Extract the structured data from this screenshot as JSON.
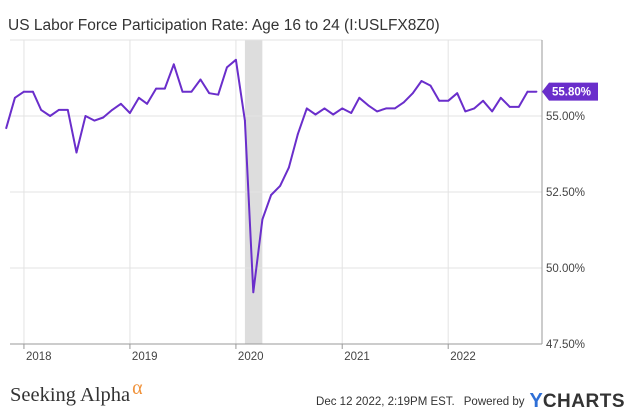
{
  "chart_data": {
    "type": "line",
    "title": "US Labor Force Participation Rate: Age 16 to 24 (I:USLFX8Z0)",
    "xlabel": "",
    "ylabel": "",
    "xlim": [
      "2017-12",
      "2022-11"
    ],
    "ylim": [
      47.5,
      57.5
    ],
    "grid": true,
    "x_tick_labels": [
      "2018",
      "2019",
      "2020",
      "2021",
      "2022"
    ],
    "y_tick_labels": [
      "47.50%",
      "50.00%",
      "52.50%",
      "55.00%"
    ],
    "y_ticks": [
      47.5,
      50.0,
      52.5,
      55.0
    ],
    "last_value_label": "55.80%",
    "line_color": "#6a2ecb",
    "recession_shading": {
      "start": "2020-02",
      "end": "2020-04",
      "color": "#dddddd"
    },
    "series": [
      {
        "x": [
          "2017-11",
          "2017-12",
          "2018-01",
          "2018-02",
          "2018-03",
          "2018-04",
          "2018-05",
          "2018-06",
          "2018-07",
          "2018-08",
          "2018-09",
          "2018-10",
          "2018-11",
          "2018-12",
          "2019-01",
          "2019-02",
          "2019-03",
          "2019-04",
          "2019-05",
          "2019-06",
          "2019-07",
          "2019-08",
          "2019-09",
          "2019-10",
          "2019-11",
          "2019-12",
          "2020-01",
          "2020-02",
          "2020-03",
          "2020-04",
          "2020-05",
          "2020-06",
          "2020-07",
          "2020-08",
          "2020-09",
          "2020-10",
          "2020-11",
          "2020-12",
          "2021-01",
          "2021-02",
          "2021-03",
          "2021-04",
          "2021-05",
          "2021-06",
          "2021-07",
          "2021-08",
          "2021-09",
          "2021-10",
          "2021-11",
          "2021-12",
          "2022-01",
          "2022-02",
          "2022-03",
          "2022-04",
          "2022-05",
          "2022-06",
          "2022-07",
          "2022-08",
          "2022-09",
          "2022-10",
          "2022-11"
        ],
        "values": [
          54.6,
          55.6,
          55.8,
          55.8,
          55.2,
          55.0,
          55.2,
          55.2,
          53.8,
          55.0,
          54.85,
          54.95,
          55.2,
          55.4,
          55.1,
          55.6,
          55.4,
          55.9,
          55.9,
          56.7,
          55.8,
          55.8,
          56.2,
          55.75,
          55.7,
          56.6,
          56.85,
          54.85,
          49.2,
          51.6,
          52.4,
          52.7,
          53.3,
          54.4,
          55.25,
          55.05,
          55.25,
          55.05,
          55.25,
          55.1,
          55.6,
          55.35,
          55.15,
          55.25,
          55.25,
          55.45,
          55.75,
          56.15,
          56.0,
          55.5,
          55.5,
          55.75,
          55.15,
          55.25,
          55.5,
          55.15,
          55.6,
          55.3,
          55.3,
          55.8,
          55.8
        ]
      }
    ]
  },
  "footer": {
    "brand": "Seeking Alpha",
    "brand_symbol": "α",
    "date": "Dec 12 2022, 2:19PM EST.",
    "powered_by": "Powered by",
    "ycharts_y": "Y",
    "ycharts_text": "CHARTS"
  }
}
